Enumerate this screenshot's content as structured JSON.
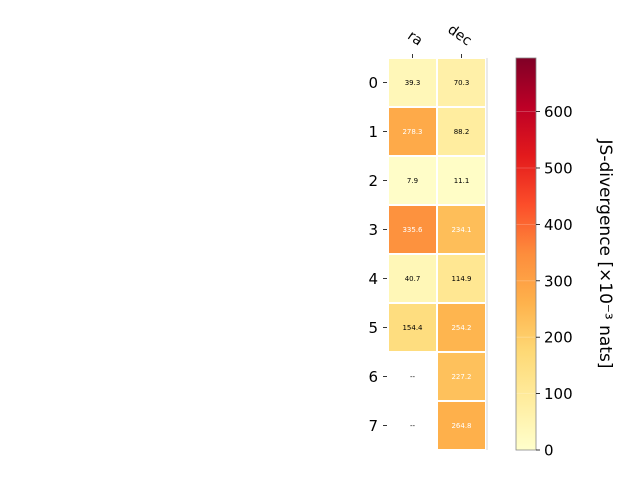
{
  "chart_data": {
    "type": "heatmap",
    "columns": [
      "ra",
      "dec"
    ],
    "rows": [
      "0",
      "1",
      "2",
      "3",
      "4",
      "5",
      "6",
      "7"
    ],
    "values": [
      [
        39.3,
        70.3
      ],
      [
        278.3,
        88.2
      ],
      [
        7.9,
        11.1
      ],
      [
        335.6,
        234.1
      ],
      [
        40.7,
        114.9
      ],
      [
        154.4,
        254.2
      ],
      [
        null,
        227.2
      ],
      [
        null,
        264.8
      ]
    ],
    "cell_labels": [
      [
        "39.3",
        "70.3"
      ],
      [
        "278.3",
        "88.2"
      ],
      [
        "7.9",
        "11.1"
      ],
      [
        "335.6",
        "234.1"
      ],
      [
        "40.7",
        "114.9"
      ],
      [
        "154.4",
        "254.2"
      ],
      [
        "--",
        "227.2"
      ],
      [
        "--",
        "264.8"
      ]
    ],
    "colorbar": {
      "label": "JS-divergence [×10⁻³ nats]",
      "min": 0,
      "max": 695,
      "ticks": [
        0,
        100,
        200,
        300,
        400,
        500,
        600
      ],
      "tick_labels": [
        "0",
        "100",
        "200",
        "300",
        "400",
        "500",
        "600"
      ],
      "colormap": "YlOrRd",
      "colormap_stops": [
        "#ffffcc",
        "#ffeda0",
        "#fed976",
        "#feb24c",
        "#fd8d3c",
        "#fc4e2a",
        "#e31a1c",
        "#bd0026",
        "#800026"
      ]
    },
    "grid": false
  }
}
